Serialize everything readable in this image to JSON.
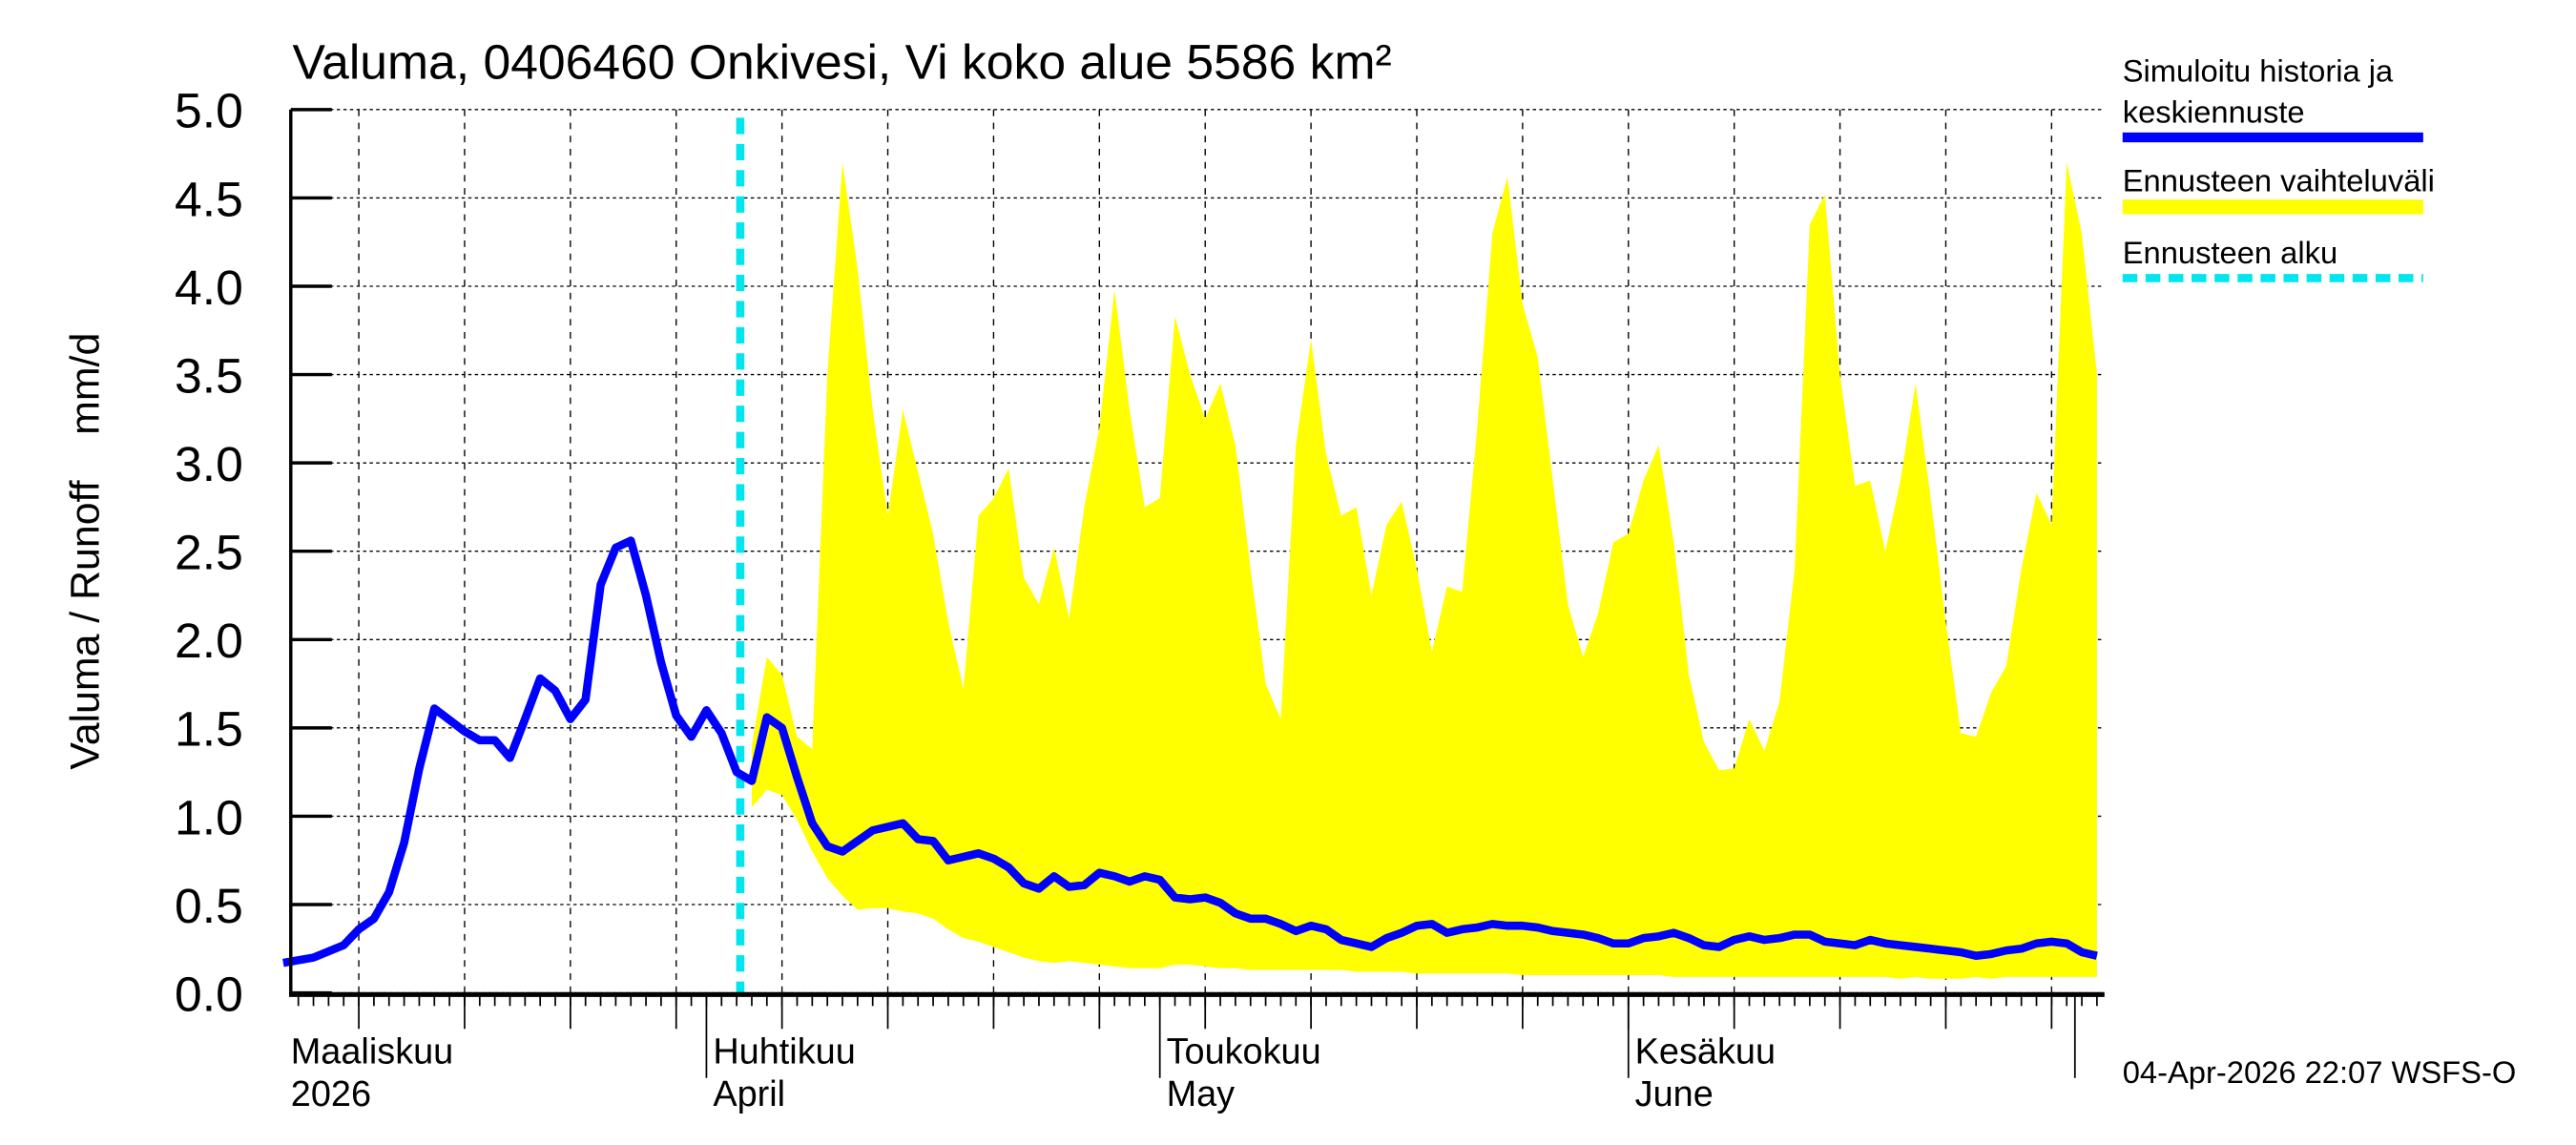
{
  "chart_data": {
    "type": "area",
    "title": "Valuma, 0406460 Onkivesi, Vi koko alue 5586 km²",
    "ylabel": "Valuma / Runoff    mm/d",
    "xlabel": "",
    "ylim": [
      0,
      5.0
    ],
    "xlim": [
      "2026-03-04",
      "2026-07-02"
    ],
    "yticks": [
      "0.0",
      "0.5",
      "1.0",
      "1.5",
      "2.0",
      "2.5",
      "3.0",
      "3.5",
      "4.0",
      "4.5",
      "5.0"
    ],
    "xtick_labels": [
      {
        "date": "2026-03-01",
        "line1": "Maaliskuu",
        "line2": "2026"
      },
      {
        "date": "2026-04-01",
        "line1": "Huhtikuu",
        "line2": "April"
      },
      {
        "date": "2026-05-01",
        "line1": "Toukokuu",
        "line2": "May"
      },
      {
        "date": "2026-06-01",
        "line1": "Kesäkuu",
        "line2": "June"
      }
    ],
    "grid": true,
    "legend_position": "right",
    "forecast_start": "2026-04-04",
    "colors": {
      "series": "#0000ff",
      "band": "#ffff00",
      "forecast_start": "#00e5ee"
    },
    "series": [
      {
        "name": "Simuloitu historia ja keskiennuste",
        "dates": [
          "2026-03-04",
          "2026-03-06",
          "2026-03-08",
          "2026-03-09",
          "2026-03-10",
          "2026-03-11",
          "2026-03-12",
          "2026-03-13",
          "2026-03-14",
          "2026-03-16",
          "2026-03-17",
          "2026-03-18",
          "2026-03-19",
          "2026-03-20",
          "2026-03-21",
          "2026-03-22",
          "2026-03-23",
          "2026-03-24",
          "2026-03-25",
          "2026-03-26",
          "2026-03-27",
          "2026-03-28",
          "2026-03-29",
          "2026-03-30",
          "2026-03-31",
          "2026-04-01",
          "2026-04-02",
          "2026-04-03",
          "2026-04-04",
          "2026-04-05",
          "2026-04-06",
          "2026-04-07",
          "2026-04-08",
          "2026-04-09",
          "2026-04-10",
          "2026-04-11",
          "2026-04-12",
          "2026-04-13",
          "2026-04-14",
          "2026-04-15",
          "2026-04-16",
          "2026-04-17",
          "2026-04-18",
          "2026-04-19",
          "2026-04-20",
          "2026-04-21",
          "2026-04-22",
          "2026-04-23",
          "2026-04-24",
          "2026-04-25",
          "2026-04-26",
          "2026-04-27",
          "2026-04-28",
          "2026-04-29",
          "2026-04-30",
          "2026-05-01",
          "2026-05-02",
          "2026-05-03",
          "2026-05-04",
          "2026-05-05",
          "2026-05-06",
          "2026-05-07",
          "2026-05-08",
          "2026-05-09",
          "2026-05-10",
          "2026-05-11",
          "2026-05-12",
          "2026-05-13",
          "2026-05-14",
          "2026-05-15",
          "2026-05-16",
          "2026-05-17",
          "2026-05-18",
          "2026-05-19",
          "2026-05-20",
          "2026-05-21",
          "2026-05-22",
          "2026-05-23",
          "2026-05-24",
          "2026-05-25",
          "2026-05-26",
          "2026-05-27",
          "2026-05-28",
          "2026-05-29",
          "2026-05-30",
          "2026-05-31",
          "2026-06-01",
          "2026-06-02",
          "2026-06-03",
          "2026-06-04",
          "2026-06-05",
          "2026-06-06",
          "2026-06-07",
          "2026-06-08",
          "2026-06-09",
          "2026-06-10",
          "2026-06-11",
          "2026-06-12",
          "2026-06-13",
          "2026-06-14",
          "2026-06-15",
          "2026-06-16",
          "2026-06-17",
          "2026-06-18",
          "2026-06-19",
          "2026-06-20",
          "2026-06-21",
          "2026-06-22",
          "2026-06-23",
          "2026-06-24",
          "2026-06-25",
          "2026-06-26",
          "2026-06-27",
          "2026-06-28",
          "2026-06-29",
          "2026-06-30",
          "2026-07-01",
          "2026-07-02"
        ],
        "values": [
          0.17,
          0.2,
          0.27,
          0.36,
          0.42,
          0.57,
          0.85,
          1.27,
          1.61,
          1.48,
          1.43,
          1.43,
          1.33,
          1.55,
          1.78,
          1.71,
          1.55,
          1.66,
          2.31,
          2.52,
          2.56,
          2.25,
          1.87,
          1.57,
          1.45,
          1.6,
          1.47,
          1.25,
          1.2,
          1.56,
          1.5,
          1.22,
          0.96,
          0.83,
          0.8,
          0.86,
          0.92,
          0.94,
          0.96,
          0.87,
          0.86,
          0.75,
          0.77,
          0.79,
          0.76,
          0.71,
          0.62,
          0.59,
          0.66,
          0.6,
          0.61,
          0.68,
          0.66,
          0.63,
          0.66,
          0.64,
          0.54,
          0.53,
          0.54,
          0.51,
          0.45,
          0.42,
          0.42,
          0.39,
          0.35,
          0.38,
          0.36,
          0.3,
          0.28,
          0.26,
          0.31,
          0.34,
          0.38,
          0.39,
          0.34,
          0.36,
          0.37,
          0.39,
          0.38,
          0.38,
          0.37,
          0.35,
          0.34,
          0.33,
          0.31,
          0.28,
          0.28,
          0.31,
          0.32,
          0.34,
          0.31,
          0.27,
          0.26,
          0.3,
          0.32,
          0.3,
          0.31,
          0.33,
          0.33,
          0.29,
          0.28,
          0.27,
          0.3,
          0.28,
          0.27,
          0.26,
          0.25,
          0.24,
          0.23,
          0.21,
          0.22,
          0.24,
          0.25,
          0.28,
          0.29,
          0.28,
          0.23,
          0.21
        ]
      },
      {
        "name": "Ennusteen vaihteluväli",
        "dates": [
          "2026-04-04",
          "2026-04-05",
          "2026-04-06",
          "2026-04-07",
          "2026-04-08",
          "2026-04-09",
          "2026-04-10",
          "2026-04-11",
          "2026-04-12",
          "2026-04-13",
          "2026-04-14",
          "2026-04-15",
          "2026-04-16",
          "2026-04-17",
          "2026-04-18",
          "2026-04-19",
          "2026-04-20",
          "2026-04-21",
          "2026-04-22",
          "2026-04-23",
          "2026-04-24",
          "2026-04-25",
          "2026-04-26",
          "2026-04-27",
          "2026-04-28",
          "2026-04-29",
          "2026-04-30",
          "2026-05-01",
          "2026-05-02",
          "2026-05-03",
          "2026-05-04",
          "2026-05-05",
          "2026-05-06",
          "2026-05-07",
          "2026-05-08",
          "2026-05-09",
          "2026-05-10",
          "2026-05-11",
          "2026-05-12",
          "2026-05-13",
          "2026-05-14",
          "2026-05-15",
          "2026-05-16",
          "2026-05-17",
          "2026-05-18",
          "2026-05-19",
          "2026-05-20",
          "2026-05-21",
          "2026-05-22",
          "2026-05-23",
          "2026-05-24",
          "2026-05-25",
          "2026-05-26",
          "2026-05-27",
          "2026-05-28",
          "2026-05-29",
          "2026-05-30",
          "2026-05-31",
          "2026-06-01",
          "2026-06-02",
          "2026-06-03",
          "2026-06-04",
          "2026-06-05",
          "2026-06-06",
          "2026-06-07",
          "2026-06-08",
          "2026-06-09",
          "2026-06-10",
          "2026-06-11",
          "2026-06-12",
          "2026-06-13",
          "2026-06-14",
          "2026-06-15",
          "2026-06-16",
          "2026-06-17",
          "2026-06-18",
          "2026-06-19",
          "2026-06-20",
          "2026-06-21",
          "2026-06-22",
          "2026-06-23",
          "2026-06-24",
          "2026-06-25",
          "2026-06-26",
          "2026-06-27",
          "2026-06-28",
          "2026-06-29",
          "2026-06-30",
          "2026-07-01",
          "2026-07-02"
        ],
        "upper": [
          1.4,
          1.9,
          1.8,
          1.45,
          1.38,
          3.5,
          4.7,
          4.1,
          3.3,
          2.7,
          3.3,
          2.95,
          2.6,
          2.1,
          1.72,
          2.7,
          2.8,
          2.97,
          2.35,
          2.2,
          2.52,
          2.12,
          2.75,
          3.2,
          3.98,
          3.3,
          2.75,
          2.8,
          3.83,
          3.5,
          3.25,
          3.45,
          3.1,
          2.4,
          1.75,
          1.55,
          3.1,
          3.7,
          3.05,
          2.7,
          2.75,
          2.25,
          2.65,
          2.78,
          2.4,
          1.93,
          2.3,
          2.27,
          3.2,
          4.3,
          4.62,
          3.9,
          3.6,
          2.9,
          2.2,
          1.9,
          2.15,
          2.55,
          2.6,
          2.9,
          3.1,
          2.55,
          1.8,
          1.42,
          1.26,
          1.27,
          1.55,
          1.37,
          1.65,
          2.4,
          4.35,
          4.52,
          3.5,
          2.87,
          2.9,
          2.5,
          2.9,
          3.45,
          2.8,
          2.1,
          1.47,
          1.45,
          1.7,
          1.85,
          2.4,
          2.83,
          2.65,
          4.7,
          4.3,
          3.5
        ],
        "lower": [
          1.05,
          1.15,
          1.12,
          0.98,
          0.8,
          0.65,
          0.55,
          0.47,
          0.48,
          0.48,
          0.46,
          0.45,
          0.42,
          0.36,
          0.31,
          0.29,
          0.26,
          0.23,
          0.2,
          0.18,
          0.17,
          0.18,
          0.17,
          0.16,
          0.15,
          0.14,
          0.14,
          0.14,
          0.16,
          0.16,
          0.15,
          0.14,
          0.14,
          0.13,
          0.13,
          0.13,
          0.13,
          0.13,
          0.13,
          0.13,
          0.12,
          0.12,
          0.12,
          0.12,
          0.11,
          0.11,
          0.11,
          0.11,
          0.11,
          0.11,
          0.11,
          0.1,
          0.1,
          0.1,
          0.1,
          0.1,
          0.1,
          0.1,
          0.1,
          0.1,
          0.1,
          0.09,
          0.09,
          0.09,
          0.09,
          0.09,
          0.09,
          0.09,
          0.09,
          0.09,
          0.09,
          0.09,
          0.09,
          0.09,
          0.09,
          0.09,
          0.08,
          0.09,
          0.08,
          0.08,
          0.08,
          0.09,
          0.08,
          0.09,
          0.09,
          0.09,
          0.09,
          0.09,
          0.09,
          0.09
        ]
      }
    ]
  },
  "legend": {
    "items": [
      {
        "line1": "Simuloitu historia ja",
        "line2": "keskiennuste"
      },
      {
        "line1": "Ennusteen vaihteluväli",
        "line2": ""
      },
      {
        "line1": "Ennusteen alku",
        "line2": ""
      }
    ]
  },
  "footer": {
    "timestamp": "04-Apr-2026 22:07 WSFS-O"
  }
}
